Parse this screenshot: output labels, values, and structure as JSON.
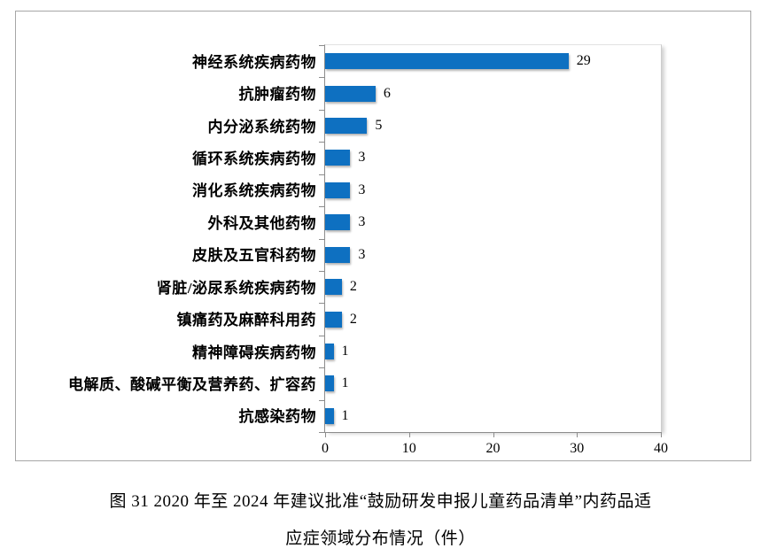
{
  "figure": {
    "caption_line1": "图 31   2020 年至 2024 年建议批准“鼓励研发申报儿童药品清单”内药品适",
    "caption_line2": "应症领域分布情况（件）"
  },
  "chart_data": {
    "type": "bar",
    "orientation": "horizontal",
    "title": "",
    "xlabel": "",
    "ylabel": "",
    "categories": [
      "神经系统疾病药物",
      "抗肿瘤药物",
      "内分泌系统药物",
      "循环系统疾病药物",
      "消化系统疾病药物",
      "外科及其他药物",
      "皮肤及五官科药物",
      "肾脏/泌尿系统疾病药物",
      "镇痛药及麻醉科用药",
      "精神障碍疾病药物",
      "电解质、酸碱平衡及营养药、扩容药",
      "抗感染药物"
    ],
    "values": [
      29,
      6,
      5,
      3,
      3,
      3,
      3,
      2,
      2,
      1,
      1,
      1
    ],
    "data_labels": [
      29,
      6,
      5,
      3,
      3,
      3,
      3,
      2,
      2,
      1,
      1,
      1
    ],
    "xlim": [
      0,
      40
    ],
    "x_ticks": [
      0,
      10,
      20,
      30,
      40
    ],
    "grid": false,
    "legend": false,
    "bar_color": "#0e70c1",
    "axis_color": "#8c8c8c"
  }
}
